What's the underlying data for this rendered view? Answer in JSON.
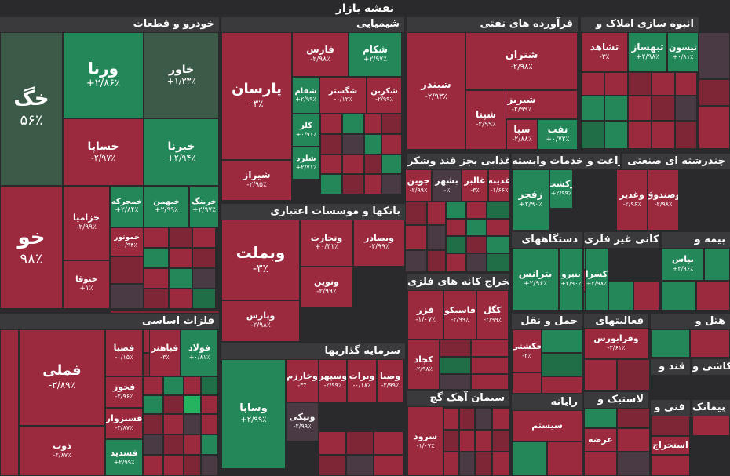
{
  "title": "نقشه بازار",
  "colors": {
    "red": "#9b2a3f",
    "red_dark": "#7e2636",
    "green": "#24875a",
    "green_dark": "#1f6e48",
    "green_bright": "#25b35f",
    "neutral": "#4a3a43",
    "dark_green": "#3c5a48"
  },
  "sectors": [
    "خودرو و قطعات",
    "شیمیایی",
    "فرآورده های نفتی",
    "انبوه سازی املاک و",
    "غذایی بجز قند وشکر",
    "زراعت و خدمات وابسته",
    "چندرشته ای صنعتی",
    "بانکها و موسسات اعتباری",
    "دستگاههای",
    "کانی غیر فلزی",
    "بیمه و",
    "استخراج کانه های فلزی",
    "فلزات اساسی",
    "حمل و نقل",
    "فعالیتهای",
    "هتل و",
    "سرمایه گذاریها",
    "قند و",
    "کاشی و",
    "سیمان آهک گچ",
    "رایانه",
    "لاستیک و",
    "فنی و",
    "پیمانک"
  ],
  "tickers": [
    {
      "name": "خگ",
      "change": "۵۶٪"
    },
    {
      "name": "ورنا",
      "change": "+۲/۸۶٪"
    },
    {
      "name": "خاور",
      "change": "+۱/۳۳٪"
    },
    {
      "name": "خساپا",
      "change": "-۲/۹۷٪"
    },
    {
      "name": "خبرنا",
      "change": "+۲/۹۴٪"
    },
    {
      "name": "خو",
      "change": "۹۸٪"
    },
    {
      "name": "خزامیا",
      "change": "-۲/۹۹٪"
    },
    {
      "name": "خمحرکه",
      "change": "+۲/۸۴٪"
    },
    {
      "name": "خبهمن",
      "change": "+۲/۹۹٪"
    },
    {
      "name": "خرینگ",
      "change": "+۲/۹۷٪"
    },
    {
      "name": "خموتور",
      "change": "+۰/۹۴٪"
    },
    {
      "name": "ختوقا",
      "change": "+۱٪"
    },
    {
      "name": "پارسان",
      "change": "-۳٪"
    },
    {
      "name": "فارس",
      "change": "-۲/۹۸٪"
    },
    {
      "name": "شکام",
      "change": "+۲/۹۷٪"
    },
    {
      "name": "شفام",
      "change": "+۲/۹۹٪"
    },
    {
      "name": "شگستر",
      "change": "-۰/۱۲٪"
    },
    {
      "name": "شکربن",
      "change": "-۲/۹۹٪"
    },
    {
      "name": "کلر",
      "change": "+۰/۹۱٪"
    },
    {
      "name": "شلرد",
      "change": "+۲/۷۱٪"
    },
    {
      "name": "شیراز",
      "change": "-۲/۹۵٪"
    },
    {
      "name": "شتران",
      "change": "-۲/۹۸٪"
    },
    {
      "name": "شبندر",
      "change": "-۲/۹۳٪"
    },
    {
      "name": "شبریز",
      "change": "-۲/۹۹٪"
    },
    {
      "name": "شپنا",
      "change": "-۲/۹۹٪"
    },
    {
      "name": "سپا",
      "change": "-۲/۸۸٪"
    },
    {
      "name": "نفت",
      "change": "+۰/۷۲٪"
    },
    {
      "name": "تشاهد",
      "change": "-۳٪"
    },
    {
      "name": "ثبهساز",
      "change": "+۲/۹۸٪"
    },
    {
      "name": "ثیسون",
      "change": "+۰/۸۱٪"
    },
    {
      "name": "جوین",
      "change": "-۲/۹۹٪"
    },
    {
      "name": "بشهر",
      "change": "۰٪"
    },
    {
      "name": "غالبر",
      "change": "-۳٪"
    },
    {
      "name": "غدینه",
      "change": "-۱/۶۶٪"
    },
    {
      "name": "زفجر",
      "change": "+۲/۹۰٪"
    },
    {
      "name": "زکشت",
      "change": "+۲/۹۹٪"
    },
    {
      "name": "وغدیر",
      "change": "-۲/۹۶٪"
    },
    {
      "name": "وصندوق",
      "change": "-۲/۹۸٪"
    },
    {
      "name": "وبملت",
      "change": "-۳٪"
    },
    {
      "name": "وتجارت",
      "change": "+۰/۳۱٪"
    },
    {
      "name": "وبصادر",
      "change": "-۲/۹۹٪"
    },
    {
      "name": "ونوین",
      "change": "-۲/۹۹٪"
    },
    {
      "name": "وپارس",
      "change": "-۲/۹۸٪"
    },
    {
      "name": "بترانس",
      "change": "+۲/۹۶٪"
    },
    {
      "name": "بنیرو",
      "change": "+۲/۹۰٪"
    },
    {
      "name": "کسرا",
      "change": "+۲/۹۸٪"
    },
    {
      "name": "بپاس",
      "change": "+۲/۹۶٪"
    },
    {
      "name": "فزر",
      "change": "-۱/۰۷٪"
    },
    {
      "name": "فاسیکو",
      "change": "-۲/۹۹٪"
    },
    {
      "name": "کگل",
      "change": "-۲/۹۹٪"
    },
    {
      "name": "کچاد",
      "change": "-۲/۹۸٪"
    },
    {
      "name": "فملی",
      "change": "-۲/۸۹٪"
    },
    {
      "name": "فولاد",
      "change": "+۰/۸۱٪"
    },
    {
      "name": "فباهنر",
      "change": "-۳٪"
    },
    {
      "name": "فصبا",
      "change": "-۰/۱۵٪"
    },
    {
      "name": "فخوز",
      "change": "-۲/۹۶٪"
    },
    {
      "name": "فسبزوار",
      "change": "-۲/۸۷٪"
    },
    {
      "name": "فسدید",
      "change": "+۲/۹۹٪"
    },
    {
      "name": "ذوب",
      "change": "-۲/۸۷٪"
    },
    {
      "name": "حکشتی",
      "change": "-۳٪"
    },
    {
      "name": "وفرابورس",
      "change": "-۲/۶۱٪"
    },
    {
      "name": "وساپا",
      "change": "+۲/۹۹٪"
    },
    {
      "name": "وخارزم",
      "change": "-۳٪"
    },
    {
      "name": "وسپهر",
      "change": "-۲/۹۹٪"
    },
    {
      "name": "وبرات",
      "change": "-۰/۱۸٪"
    },
    {
      "name": "وصبا",
      "change": "-۲/۹۹٪"
    },
    {
      "name": "ونیکی",
      "change": "-۲/۹۹٪"
    },
    {
      "name": "سرود",
      "change": "-۱/۰۷٪"
    },
    {
      "name": "سیستم",
      "change": ""
    },
    {
      "name": "عرضه",
      "change": ""
    },
    {
      "name": "استخراج",
      "change": ""
    }
  ]
}
